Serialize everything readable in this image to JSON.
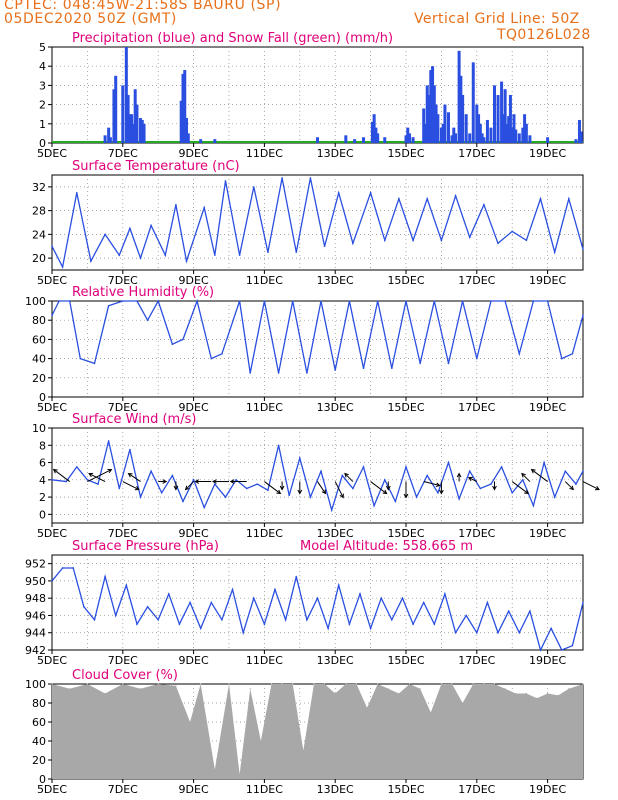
{
  "header": {
    "line1": "CPTEC:  048:45W-21:58S  BAURU (SP)",
    "line2": "05DEC2020 50Z (GMT)",
    "grid_note": "Vertical Grid Line: 50Z",
    "code": "TQ0126L028"
  },
  "x_axis": {
    "start_label": "5DEC",
    "ticks": [
      "5DEC",
      "7DEC",
      "9DEC",
      "11DEC",
      "13DEC",
      "15DEC",
      "17DEC",
      "19DEC"
    ],
    "tick_days": [
      0,
      2,
      4,
      6,
      8,
      10,
      12,
      14
    ],
    "span_days": 15
  },
  "colors": {
    "title": "#e0007a",
    "header": "#e8701a",
    "line": "#2a4fe0",
    "bar": "#2a4fe0",
    "snow": "#22aa22",
    "cloud": "#a8a8a8",
    "arrow": "#000000"
  },
  "chart_data": [
    {
      "id": "precip",
      "type": "bar",
      "title": "Precipitation (blue) and Snow Fall (green) (mm/h)",
      "ylim": [
        0,
        5
      ],
      "yticks": [
        0,
        1,
        2,
        3,
        4,
        5
      ],
      "snow_values": 0,
      "series": [
        {
          "name": "Precipitation",
          "x": [
            1.5,
            1.6,
            1.65,
            1.75,
            1.8,
            2.0,
            2.1,
            2.15,
            2.2,
            2.25,
            2.3,
            2.35,
            2.4,
            2.5,
            2.55,
            2.6,
            3.65,
            3.7,
            3.75,
            3.8,
            3.85,
            4.2,
            4.6,
            7.5,
            8.3,
            8.55,
            8.8,
            9.05,
            9.1,
            9.15,
            9.2,
            9.4,
            10.0,
            10.05,
            10.1,
            10.2,
            10.5,
            10.55,
            10.6,
            10.65,
            10.7,
            10.75,
            10.8,
            10.85,
            10.9,
            11.0,
            11.05,
            11.1,
            11.2,
            11.3,
            11.35,
            11.4,
            11.5,
            11.55,
            11.6,
            11.7,
            11.8,
            11.9,
            12.0,
            12.05,
            12.1,
            12.15,
            12.2,
            12.3,
            12.4,
            12.5,
            12.6,
            12.7,
            12.75,
            12.8,
            12.85,
            12.9,
            12.95,
            13.0,
            13.05,
            13.1,
            13.2,
            13.3,
            13.35,
            13.4,
            13.5,
            14.0,
            14.8,
            14.9,
            14.95
          ],
          "values": [
            0.4,
            0.8,
            0.3,
            2.8,
            3.5,
            3.0,
            5.0,
            2.5,
            1.5,
            1.5,
            1.0,
            2.8,
            2.0,
            1.3,
            1.2,
            1.0,
            2.2,
            3.6,
            3.8,
            1.3,
            0.5,
            0.2,
            0.2,
            0.3,
            0.4,
            0.2,
            0.3,
            1.1,
            1.5,
            0.8,
            0.5,
            0.3,
            0.4,
            0.8,
            0.5,
            0.3,
            1.8,
            1.0,
            3.0,
            2.5,
            3.8,
            4.0,
            3.0,
            2.0,
            1.5,
            0.8,
            1.0,
            2.0,
            1.6,
            0.4,
            0.8,
            0.5,
            4.8,
            3.5,
            2.5,
            1.5,
            0.5,
            4.2,
            2.0,
            1.5,
            1.0,
            0.5,
            0.3,
            1.2,
            0.8,
            3.0,
            2.5,
            3.2,
            1.5,
            2.8,
            1.0,
            1.4,
            2.5,
            0.8,
            1.5,
            0.7,
            0.5,
            0.8,
            1.5,
            1.0,
            0.4,
            0.3,
            0.2,
            1.2,
            0.6
          ]
        }
      ]
    },
    {
      "id": "temp",
      "type": "line",
      "title": "Surface Temperature (nC)",
      "ylim": [
        18,
        34
      ],
      "yticks": [
        20,
        24,
        28,
        32
      ],
      "series": [
        {
          "name": "Temperature",
          "x": [
            0,
            0.3,
            0.7,
            1.1,
            1.5,
            1.9,
            2.2,
            2.5,
            2.8,
            3.2,
            3.5,
            3.8,
            4.3,
            4.6,
            4.9,
            5.3,
            5.7,
            6.1,
            6.5,
            6.9,
            7.3,
            7.7,
            8.1,
            8.5,
            9.0,
            9.4,
            9.8,
            10.2,
            10.6,
            11.0,
            11.4,
            11.8,
            12.2,
            12.6,
            13.0,
            13.4,
            13.8,
            14.2,
            14.6,
            15.0
          ],
          "values": [
            22,
            18.5,
            31,
            19.5,
            24,
            20.5,
            25,
            20,
            25.5,
            20.5,
            29,
            19.5,
            28.5,
            20.5,
            33,
            20.5,
            32,
            21,
            33.5,
            21,
            33.5,
            22,
            31,
            22.5,
            31,
            23,
            30,
            23,
            30,
            23,
            30.5,
            23.5,
            29,
            22.5,
            24.5,
            23,
            30,
            21,
            30,
            21.5
          ]
        }
      ]
    },
    {
      "id": "rh",
      "type": "line",
      "title": "Relative Humidity (%)",
      "ylim": [
        0,
        100
      ],
      "yticks": [
        0,
        20,
        40,
        60,
        80,
        100
      ],
      "series": [
        {
          "name": "Humidity",
          "x": [
            0,
            0.2,
            0.5,
            0.8,
            1.2,
            1.6,
            2.0,
            2.4,
            2.7,
            3.0,
            3.4,
            3.7,
            4.1,
            4.5,
            4.8,
            5.3,
            5.6,
            6.0,
            6.4,
            6.8,
            7.2,
            7.6,
            8.0,
            8.4,
            8.8,
            9.2,
            9.6,
            10.0,
            10.4,
            10.8,
            11.2,
            11.6,
            12.0,
            12.4,
            12.8,
            13.2,
            13.6,
            14.0,
            14.4,
            14.7,
            15.0
          ],
          "values": [
            85,
            100,
            100,
            40,
            35,
            95,
            100,
            100,
            80,
            100,
            55,
            60,
            100,
            40,
            45,
            100,
            25,
            100,
            25,
            100,
            25,
            100,
            28,
            100,
            30,
            100,
            30,
            100,
            35,
            100,
            35,
            100,
            40,
            100,
            100,
            45,
            100,
            100,
            40,
            45,
            85
          ]
        }
      ]
    },
    {
      "id": "wind",
      "type": "line",
      "title": "Surface Wind (m/s)",
      "ylim": [
        -1,
        10
      ],
      "yticks": [
        0,
        2,
        4,
        6,
        8,
        10
      ],
      "series": [
        {
          "name": "Wind speed",
          "x": [
            0,
            0.4,
            0.7,
            1.0,
            1.3,
            1.6,
            1.9,
            2.2,
            2.5,
            2.8,
            3.1,
            3.4,
            3.7,
            4.0,
            4.3,
            4.6,
            4.9,
            5.2,
            5.5,
            5.8,
            6.1,
            6.4,
            6.7,
            7.0,
            7.3,
            7.6,
            7.9,
            8.2,
            8.5,
            8.8,
            9.1,
            9.4,
            9.7,
            10.0,
            10.3,
            10.6,
            10.9,
            11.2,
            11.5,
            11.8,
            12.1,
            12.4,
            12.7,
            13.0,
            13.3,
            13.6,
            13.9,
            14.2,
            14.5,
            14.8,
            15.0
          ],
          "values": [
            4,
            3.8,
            5.5,
            4.0,
            3.5,
            8.5,
            3.0,
            7.5,
            2.0,
            5.0,
            2.5,
            4.5,
            1.5,
            4.0,
            0.8,
            3.5,
            2.0,
            4.0,
            3.0,
            3.5,
            2.8,
            8.0,
            2.2,
            6.5,
            2.0,
            5.0,
            0.5,
            4.5,
            3.0,
            5.5,
            1.0,
            4.0,
            1.5,
            5.5,
            2.0,
            4.5,
            2.5,
            6.0,
            1.8,
            5.0,
            3.0,
            3.5,
            5.5,
            2.5,
            4.0,
            1.0,
            6.0,
            2.0,
            5.0,
            3.5,
            5.0
          ]
        }
      ],
      "arrows": {
        "x": [
          0.5,
          1.0,
          1.5,
          2.0,
          2.5,
          3.0,
          3.5,
          4.0,
          4.5,
          5.0,
          5.5,
          6.0,
          6.5,
          7.0,
          7.5,
          8.0,
          8.5,
          9.0,
          9.5,
          10.0,
          10.5,
          11.0,
          11.5,
          12.0,
          12.5,
          13.0,
          13.5,
          14.0,
          14.5,
          15.0
        ],
        "u": [
          -2,
          3,
          -2,
          2,
          -1.5,
          1,
          0,
          -1,
          -2,
          -2,
          -2,
          2,
          0,
          0,
          1,
          1,
          -1,
          2,
          0,
          0,
          2,
          0,
          0,
          -1,
          0,
          2,
          -1,
          -2,
          1,
          2
        ],
        "v": [
          1.5,
          1.5,
          1,
          -1,
          1,
          0,
          -1,
          -1,
          0,
          0,
          0,
          -1.5,
          -1,
          -1.5,
          -1.5,
          -2,
          1,
          -1.5,
          -1,
          -2,
          -0.5,
          -1.5,
          1,
          0.5,
          -1,
          -1.5,
          1,
          1.5,
          -1,
          -1
        ]
      }
    },
    {
      "id": "press",
      "type": "line",
      "title": "Surface Pressure (hPa)",
      "subtitle": "Model Altitude: 558.665 m",
      "ylim": [
        942,
        953
      ],
      "yticks": [
        942,
        944,
        946,
        948,
        950,
        952
      ],
      "series": [
        {
          "name": "Pressure",
          "x": [
            0,
            0.3,
            0.6,
            0.9,
            1.2,
            1.5,
            1.8,
            2.1,
            2.4,
            2.7,
            3.0,
            3.3,
            3.6,
            3.9,
            4.2,
            4.5,
            4.8,
            5.1,
            5.4,
            5.7,
            6.0,
            6.3,
            6.6,
            6.9,
            7.2,
            7.5,
            7.8,
            8.1,
            8.4,
            8.7,
            9.0,
            9.3,
            9.6,
            9.9,
            10.2,
            10.5,
            10.8,
            11.1,
            11.4,
            11.7,
            12.0,
            12.3,
            12.6,
            12.9,
            13.2,
            13.5,
            13.8,
            14.1,
            14.4,
            14.7,
            15.0
          ],
          "values": [
            950,
            951.5,
            951.5,
            947,
            945.5,
            950.5,
            946,
            949.5,
            945,
            947,
            945.5,
            948.5,
            945,
            947.5,
            944.5,
            947.5,
            945.5,
            949,
            944,
            948,
            945,
            949,
            945.5,
            950.5,
            945.5,
            948,
            944.5,
            949.5,
            945,
            948.5,
            944.5,
            948,
            945.5,
            948,
            945,
            947.5,
            945,
            948.5,
            944,
            946,
            944,
            947.5,
            944,
            946.5,
            944,
            946.5,
            942,
            944.5,
            942,
            942.5,
            947.5
          ]
        }
      ]
    },
    {
      "id": "cloud",
      "type": "area",
      "title": "Cloud Cover (%)",
      "ylim": [
        0,
        100
      ],
      "yticks": [
        0,
        20,
        40,
        60,
        80,
        100
      ],
      "series": [
        {
          "name": "Cloud",
          "x": [
            0,
            0.5,
            1.0,
            1.5,
            2.0,
            2.5,
            3.0,
            3.5,
            3.9,
            4.2,
            4.6,
            5.0,
            5.3,
            5.6,
            5.9,
            6.2,
            6.5,
            6.8,
            7.1,
            7.4,
            7.7,
            8.0,
            8.3,
            8.6,
            8.9,
            9.2,
            9.5,
            9.8,
            10.1,
            10.4,
            10.7,
            11.0,
            11.3,
            11.6,
            11.9,
            12.2,
            12.5,
            12.8,
            13.1,
            13.4,
            13.7,
            14.0,
            14.3,
            14.6,
            15.0
          ],
          "values": [
            100,
            95,
            100,
            90,
            100,
            95,
            100,
            98,
            60,
            100,
            10,
            100,
            5,
            95,
            40,
            100,
            100,
            100,
            30,
            100,
            100,
            90,
            100,
            100,
            75,
            100,
            95,
            90,
            100,
            95,
            70,
            100,
            100,
            80,
            100,
            100,
            100,
            95,
            90,
            90,
            85,
            90,
            88,
            95,
            100
          ]
        }
      ]
    }
  ]
}
